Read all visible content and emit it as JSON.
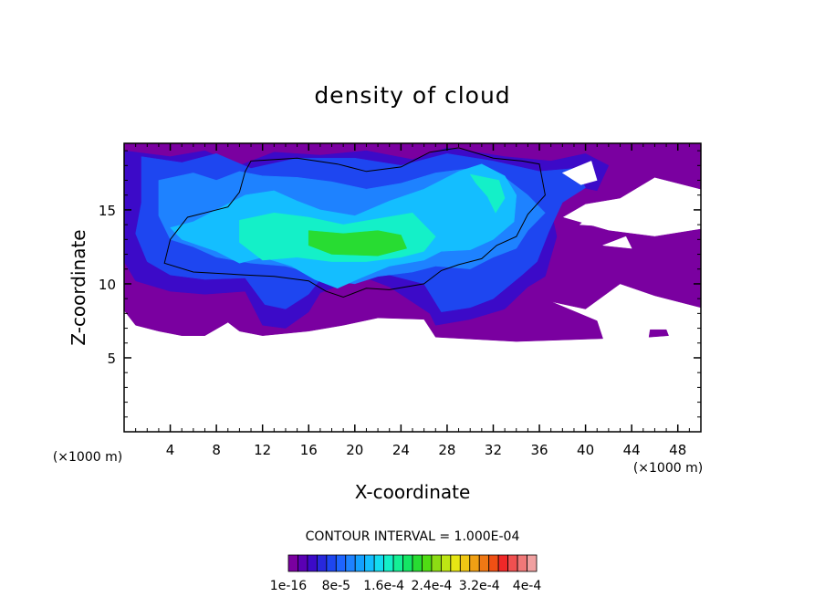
{
  "chart_data": {
    "type": "heatmap",
    "title": "density of cloud",
    "xlabel": "X-coordinate",
    "ylabel": "Z-coordinate",
    "x_unit_label": "(×1000 m)",
    "y_unit_label": "(×1000 m)",
    "xlim": [
      0,
      50
    ],
    "ylim": [
      0,
      19.5
    ],
    "x_ticks": [
      4,
      8,
      12,
      16,
      20,
      24,
      28,
      32,
      36,
      40,
      44,
      48
    ],
    "y_ticks": [
      5,
      10,
      15
    ],
    "contour_interval_text": "CONTOUR INTERVAL = 1.000E-04",
    "colorbar": {
      "labels": [
        "1e-16",
        "8e-5",
        "1.6e-4",
        "2.4e-4",
        "3.2e-4",
        "4e-4"
      ],
      "colors": [
        "#7a00a0",
        "#5a00b4",
        "#3c0ac8",
        "#2828dc",
        "#1e46f0",
        "#1e64ff",
        "#1e82ff",
        "#14a0ff",
        "#14beff",
        "#14dcf0",
        "#14f0c8",
        "#14f096",
        "#14e664",
        "#28dc32",
        "#50dc14",
        "#8cdc14",
        "#bee614",
        "#e6e614",
        "#f0c814",
        "#f0a014",
        "#f07814",
        "#f05014",
        "#f02828",
        "#f05050",
        "#f07878",
        "#f0a0a0"
      ]
    },
    "regions": [
      {
        "level": 1,
        "color": "#7a00a0",
        "points": [
          [
            0,
            19.5
          ],
          [
            50,
            19.5
          ],
          [
            50,
            16.4
          ],
          [
            46,
            17.2
          ],
          [
            43,
            15.8
          ],
          [
            40,
            15.4
          ],
          [
            38,
            14.5
          ],
          [
            42,
            13.6
          ],
          [
            46,
            13.2
          ],
          [
            50,
            13.7
          ],
          [
            50,
            8.4
          ],
          [
            46,
            9.2
          ],
          [
            43,
            10.0
          ],
          [
            40,
            8.3
          ],
          [
            37,
            8.8
          ],
          [
            41,
            7.5
          ],
          [
            41.5,
            6.3
          ],
          [
            34,
            6.1
          ],
          [
            27,
            6.4
          ],
          [
            26,
            7.6
          ],
          [
            22,
            7.7
          ],
          [
            19,
            7.2
          ],
          [
            16,
            6.8
          ],
          [
            12,
            6.5
          ],
          [
            10,
            6.8
          ],
          [
            9,
            7.4
          ],
          [
            7,
            6.5
          ],
          [
            5,
            6.5
          ],
          [
            3,
            6.8
          ],
          [
            1,
            7.2
          ],
          [
            0,
            8.2
          ]
        ]
      },
      {
        "level": 1,
        "color": "#7a00a0",
        "points": [
          [
            45.5,
            6.4
          ],
          [
            47.2,
            6.5
          ],
          [
            47,
            6.9
          ],
          [
            45.6,
            6.9
          ]
        ]
      },
      {
        "level": 2,
        "color": "#3c0ac8",
        "points": [
          [
            0,
            19.0
          ],
          [
            4,
            18.6
          ],
          [
            7,
            19.0
          ],
          [
            10,
            18.0
          ],
          [
            13,
            18.9
          ],
          [
            17,
            18.7
          ],
          [
            21,
            19.0
          ],
          [
            25,
            18.4
          ],
          [
            28,
            19.2
          ],
          [
            33,
            18.6
          ],
          [
            37,
            18.3
          ],
          [
            40,
            18.8
          ],
          [
            42,
            18.0
          ],
          [
            41,
            16.3
          ],
          [
            38,
            16.8
          ],
          [
            37,
            15.0
          ],
          [
            37.5,
            13.2
          ],
          [
            36.5,
            10.5
          ],
          [
            35,
            9.8
          ],
          [
            33,
            8.3
          ],
          [
            30,
            7.6
          ],
          [
            27,
            7.2
          ],
          [
            26.5,
            8.0
          ],
          [
            23,
            9.8
          ],
          [
            21,
            10.4
          ],
          [
            19,
            10.0
          ],
          [
            17,
            9.4
          ],
          [
            16,
            8.1
          ],
          [
            14,
            7.0
          ],
          [
            12,
            7.2
          ],
          [
            10.5,
            9.5
          ],
          [
            7,
            9.3
          ],
          [
            4,
            9.5
          ],
          [
            1,
            10.2
          ],
          [
            0,
            11.5
          ]
        ]
      },
      {
        "level": 3,
        "color": "#1e46f0",
        "points": [
          [
            1.5,
            18.6
          ],
          [
            5,
            18.2
          ],
          [
            8,
            18.8
          ],
          [
            11,
            17.8
          ],
          [
            15,
            18.5
          ],
          [
            20,
            18.5
          ],
          [
            24,
            18.0
          ],
          [
            28,
            18.8
          ],
          [
            32,
            18.3
          ],
          [
            36,
            17.6
          ],
          [
            39,
            17.8
          ],
          [
            40,
            16.5
          ],
          [
            38,
            15.5
          ],
          [
            36.8,
            13.5
          ],
          [
            35.8,
            11.5
          ],
          [
            34.5,
            10.6
          ],
          [
            32,
            9.0
          ],
          [
            30,
            8.4
          ],
          [
            27.5,
            8.1
          ],
          [
            26,
            10.0
          ],
          [
            23,
            10.6
          ],
          [
            20,
            10.8
          ],
          [
            17,
            10.3
          ],
          [
            16,
            9.3
          ],
          [
            14,
            8.3
          ],
          [
            12.2,
            8.6
          ],
          [
            10.5,
            10.4
          ],
          [
            7,
            10.3
          ],
          [
            4,
            10.6
          ],
          [
            2,
            11.5
          ],
          [
            1,
            13.4
          ],
          [
            1.5,
            15.5
          ]
        ]
      },
      {
        "level": 4,
        "color": "#1e82ff",
        "points": [
          [
            3,
            17.0
          ],
          [
            6,
            17.5
          ],
          [
            8,
            17.0
          ],
          [
            10,
            17.6
          ],
          [
            12,
            17.3
          ],
          [
            15,
            17.2
          ],
          [
            18,
            16.9
          ],
          [
            21,
            16.4
          ],
          [
            24,
            16.8
          ],
          [
            27,
            17.5
          ],
          [
            30,
            17.8
          ],
          [
            33,
            17.2
          ],
          [
            35,
            16.0
          ],
          [
            36.5,
            14.8
          ],
          [
            35,
            13.6
          ],
          [
            34,
            12.4
          ],
          [
            32,
            11.8
          ],
          [
            30,
            11.0
          ],
          [
            27,
            11.2
          ],
          [
            25,
            10.8
          ],
          [
            22,
            10.5
          ],
          [
            20,
            10.0
          ],
          [
            18,
            10.2
          ],
          [
            16,
            10.8
          ],
          [
            14,
            11.2
          ],
          [
            11,
            11.4
          ],
          [
            8,
            11.8
          ],
          [
            6,
            12.5
          ],
          [
            4,
            13.0
          ],
          [
            3,
            14.6
          ]
        ]
      },
      {
        "level": 5,
        "color": "#14beff",
        "points": [
          [
            8,
            15.0
          ],
          [
            10.5,
            16.0
          ],
          [
            13,
            16.3
          ],
          [
            15,
            15.6
          ],
          [
            17,
            15.0
          ],
          [
            20,
            14.6
          ],
          [
            23,
            15.6
          ],
          [
            26,
            16.4
          ],
          [
            29,
            17.6
          ],
          [
            31,
            18.1
          ],
          [
            33,
            17.3
          ],
          [
            34,
            16.0
          ],
          [
            33.8,
            14.2
          ],
          [
            32,
            13.0
          ],
          [
            30,
            12.3
          ],
          [
            27.5,
            12.2
          ],
          [
            26,
            11.6
          ],
          [
            23,
            11.2
          ],
          [
            20.5,
            10.4
          ],
          [
            18.5,
            9.7
          ],
          [
            16.5,
            10.3
          ],
          [
            14.5,
            11.2
          ],
          [
            12,
            11.8
          ],
          [
            10,
            11.4
          ],
          [
            8,
            12.2
          ],
          [
            5,
            13.0
          ],
          [
            4,
            13.8
          ],
          [
            6,
            14.2
          ]
        ]
      },
      {
        "level": 6,
        "color": "#14f0c8",
        "points": [
          [
            10,
            14.3
          ],
          [
            13,
            14.8
          ],
          [
            16,
            14.5
          ],
          [
            19,
            14.0
          ],
          [
            22,
            14.4
          ],
          [
            25,
            14.8
          ],
          [
            26,
            14.0
          ],
          [
            27,
            13.2
          ],
          [
            26,
            12.2
          ],
          [
            24,
            11.8
          ],
          [
            21,
            11.5
          ],
          [
            18,
            11.5
          ],
          [
            15,
            11.8
          ],
          [
            12,
            11.6
          ],
          [
            10,
            12.8
          ]
        ]
      },
      {
        "level": 6,
        "color": "#14f0c8",
        "points": [
          [
            30,
            17.4
          ],
          [
            32.5,
            17.0
          ],
          [
            33,
            15.8
          ],
          [
            32.2,
            14.8
          ],
          [
            31.5,
            15.9
          ],
          [
            30.5,
            16.8
          ]
        ]
      },
      {
        "level": 7,
        "color": "#28dc32",
        "points": [
          [
            16,
            13.6
          ],
          [
            19,
            13.4
          ],
          [
            22,
            13.6
          ],
          [
            24,
            13.3
          ],
          [
            24.5,
            12.4
          ],
          [
            22,
            11.9
          ],
          [
            18,
            12.0
          ],
          [
            16,
            12.6
          ]
        ]
      },
      {
        "level": 0,
        "color": "#ffffff",
        "points": [
          [
            39.5,
            14.0
          ],
          [
            41,
            15.0
          ],
          [
            43,
            15.1
          ],
          [
            43.5,
            14.4
          ],
          [
            41.5,
            13.9
          ]
        ]
      },
      {
        "level": 0,
        "color": "#ffffff",
        "points": [
          [
            41.5,
            12.6
          ],
          [
            43.5,
            13.2
          ],
          [
            44,
            12.4
          ]
        ]
      },
      {
        "level": 0,
        "color": "#ffffff",
        "points": [
          [
            38,
            17.5
          ],
          [
            40.5,
            18.3
          ],
          [
            41,
            17.0
          ],
          [
            39.6,
            16.7
          ]
        ]
      }
    ],
    "contour_lines": [
      [
        [
          11,
          18.3
        ],
        [
          15,
          18.5
        ],
        [
          18.5,
          18.1
        ],
        [
          21,
          17.6
        ],
        [
          24,
          17.9
        ],
        [
          26.5,
          18.9
        ],
        [
          29,
          19.2
        ],
        [
          32,
          18.5
        ],
        [
          34.5,
          18.3
        ],
        [
          36,
          18.1
        ],
        [
          36.5,
          16.0
        ],
        [
          35,
          14.7
        ],
        [
          34,
          13.2
        ],
        [
          32.3,
          12.6
        ],
        [
          31,
          11.7
        ],
        [
          29,
          11.3
        ],
        [
          27.5,
          10.9
        ],
        [
          26,
          10.0
        ],
        [
          23,
          9.6
        ],
        [
          21,
          9.7
        ],
        [
          19,
          9.1
        ],
        [
          17.5,
          9.5
        ],
        [
          16,
          10.2
        ],
        [
          13,
          10.5
        ],
        [
          10.5,
          10.6
        ],
        [
          6,
          10.8
        ],
        [
          3.5,
          11.4
        ],
        [
          4,
          13.0
        ],
        [
          5.5,
          14.5
        ],
        [
          7,
          14.8
        ],
        [
          9,
          15.2
        ],
        [
          10,
          16.2
        ],
        [
          10.5,
          17.6
        ]
      ]
    ]
  }
}
